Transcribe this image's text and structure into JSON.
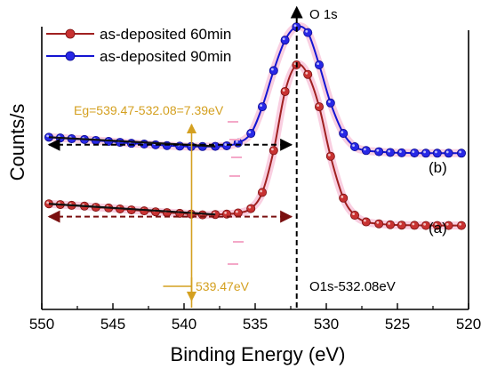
{
  "chart_data": {
    "type": "line",
    "title": "",
    "xlabel": "Binding Energy (eV)",
    "ylabel": "Counts/s",
    "xlim": [
      550,
      520
    ],
    "x_reversed": true,
    "x_ticks": [
      550,
      545,
      540,
      535,
      530,
      525,
      520
    ],
    "y_ticks_shown": false,
    "grid": false,
    "legend_position": "top-left",
    "series": [
      {
        "name": "as-deposited 60min",
        "label": "(a)",
        "color": "#a02020",
        "marker_color": "#c83232",
        "x": [
          549.5,
          548.7,
          547.9,
          547.0,
          546.2,
          545.3,
          544.5,
          543.7,
          542.8,
          542.0,
          541.2,
          540.3,
          539.5,
          538.7,
          537.8,
          537.0,
          536.2,
          535.3,
          534.5,
          533.7,
          532.9,
          532.1,
          531.3,
          530.5,
          529.7,
          528.8,
          528.0,
          527.2,
          526.3,
          525.5,
          524.7,
          523.8,
          523.0,
          522.2,
          521.4,
          520.5
        ],
        "y": [
          0.27,
          0.266,
          0.262,
          0.258,
          0.252,
          0.248,
          0.243,
          0.238,
          0.233,
          0.228,
          0.224,
          0.22,
          0.216,
          0.212,
          0.214,
          0.216,
          0.222,
          0.245,
          0.33,
          0.55,
          0.86,
          1.0,
          0.95,
          0.78,
          0.52,
          0.3,
          0.21,
          0.175,
          0.165,
          0.16,
          0.158,
          0.157,
          0.156,
          0.156,
          0.156,
          0.156
        ]
      },
      {
        "name": "as-deposited 90min",
        "label": "(b)",
        "color": "#1414d2",
        "marker_color": "#2828e6",
        "x": [
          549.5,
          548.7,
          547.9,
          547.0,
          546.2,
          545.3,
          544.5,
          543.7,
          542.8,
          542.0,
          541.2,
          540.3,
          539.5,
          538.7,
          537.8,
          537.0,
          536.2,
          535.3,
          534.5,
          533.7,
          532.9,
          532.1,
          531.3,
          530.5,
          529.7,
          528.8,
          528.0,
          527.2,
          526.3,
          525.5,
          524.7,
          523.8,
          523.0,
          522.2,
          521.4,
          520.5
        ],
        "y": [
          0.62,
          0.616,
          0.612,
          0.608,
          0.603,
          0.598,
          0.593,
          0.588,
          0.584,
          0.58,
          0.576,
          0.573,
          0.571,
          0.571,
          0.572,
          0.575,
          0.59,
          0.64,
          0.78,
          0.97,
          1.13,
          1.2,
          1.17,
          1.0,
          0.8,
          0.64,
          0.57,
          0.55,
          0.544,
          0.54,
          0.538,
          0.537,
          0.536,
          0.536,
          0.536,
          0.536
        ]
      }
    ],
    "annotations": {
      "peak_label": "O 1s",
      "peak_x": 532.08,
      "peak_value_label": "O1s-532.08eV",
      "onset_x": 539.47,
      "onset_label": "539.47eV",
      "eg_label": "Eg=539.47-532.08=7.39eV",
      "annotation_color": "#d4a020"
    }
  }
}
